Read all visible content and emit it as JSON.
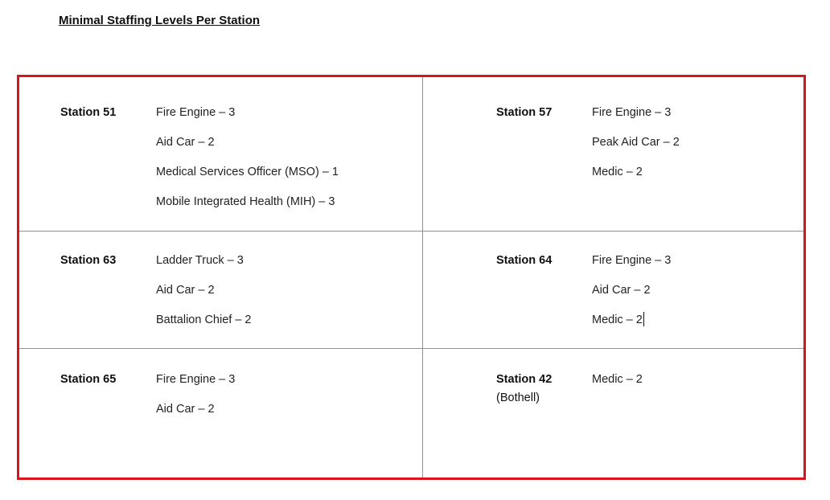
{
  "title": "Minimal Staffing Levels Per Station",
  "stations": [
    {
      "name": "Station 51",
      "sub": "",
      "items": [
        "Fire Engine – 3",
        "Aid Car – 2",
        "Medical Services Officer (MSO) – 1",
        "Mobile Integrated Health (MIH) – 3"
      ]
    },
    {
      "name": "Station 57",
      "sub": "",
      "items": [
        "Fire Engine – 3",
        "Peak Aid Car – 2",
        "Medic – 2"
      ]
    },
    {
      "name": "Station 63",
      "sub": "",
      "items": [
        "Ladder Truck – 3",
        "Aid Car – 2",
        "Battalion Chief – 2"
      ]
    },
    {
      "name": "Station 64",
      "sub": "",
      "items": [
        "Fire Engine – 3",
        "Aid Car – 2",
        "Medic – 2"
      ]
    },
    {
      "name": "Station 65",
      "sub": "",
      "items": [
        "Fire Engine – 3",
        "Aid Car – 2"
      ]
    },
    {
      "name": "Station 42",
      "sub": "(Bothell)",
      "items": [
        "Medic – 2"
      ]
    }
  ],
  "colors": {
    "border": "#d9141b",
    "inner_lines": "#e07070"
  }
}
